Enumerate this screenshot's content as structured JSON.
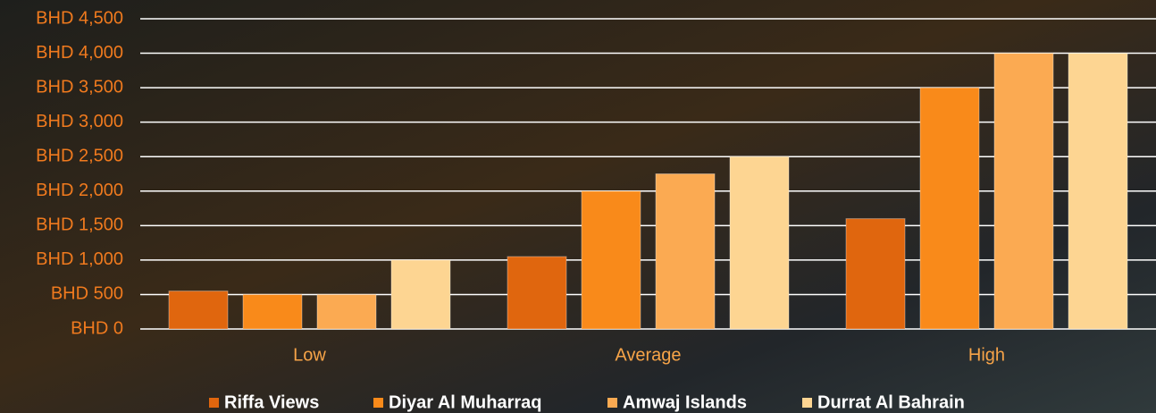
{
  "chart_data": {
    "type": "bar",
    "categories": [
      "Low",
      "Average",
      "High"
    ],
    "series": [
      {
        "name": "Riffa Views",
        "color": "#e0660e",
        "values": [
          550,
          1050,
          1600
        ]
      },
      {
        "name": "Diyar Al Muharraq",
        "color": "#f98a1a",
        "values": [
          500,
          2000,
          3500
        ]
      },
      {
        "name": "Amwaj Islands",
        "color": "#fbaa52",
        "values": [
          500,
          2250,
          4000
        ]
      },
      {
        "name": "Durrat Al Bahrain",
        "color": "#fdd592",
        "values": [
          1000,
          2500,
          4000
        ]
      }
    ],
    "ylim": [
      0,
      4500
    ],
    "yticks": [
      {
        "value": 0,
        "label": "BHD 0"
      },
      {
        "value": 500,
        "label": "BHD 500"
      },
      {
        "value": 1000,
        "label": "BHD 1,000"
      },
      {
        "value": 1500,
        "label": "BHD 1,500"
      },
      {
        "value": 2000,
        "label": "BHD 2,000"
      },
      {
        "value": 2500,
        "label": "BHD 2,500"
      },
      {
        "value": 3000,
        "label": "BHD 3,000"
      },
      {
        "value": 3500,
        "label": "BHD 3,500"
      },
      {
        "value": 4000,
        "label": "BHD 4,000"
      },
      {
        "value": 4500,
        "label": "BHD 4,500"
      }
    ],
    "grid": true,
    "legend": "bottom"
  }
}
